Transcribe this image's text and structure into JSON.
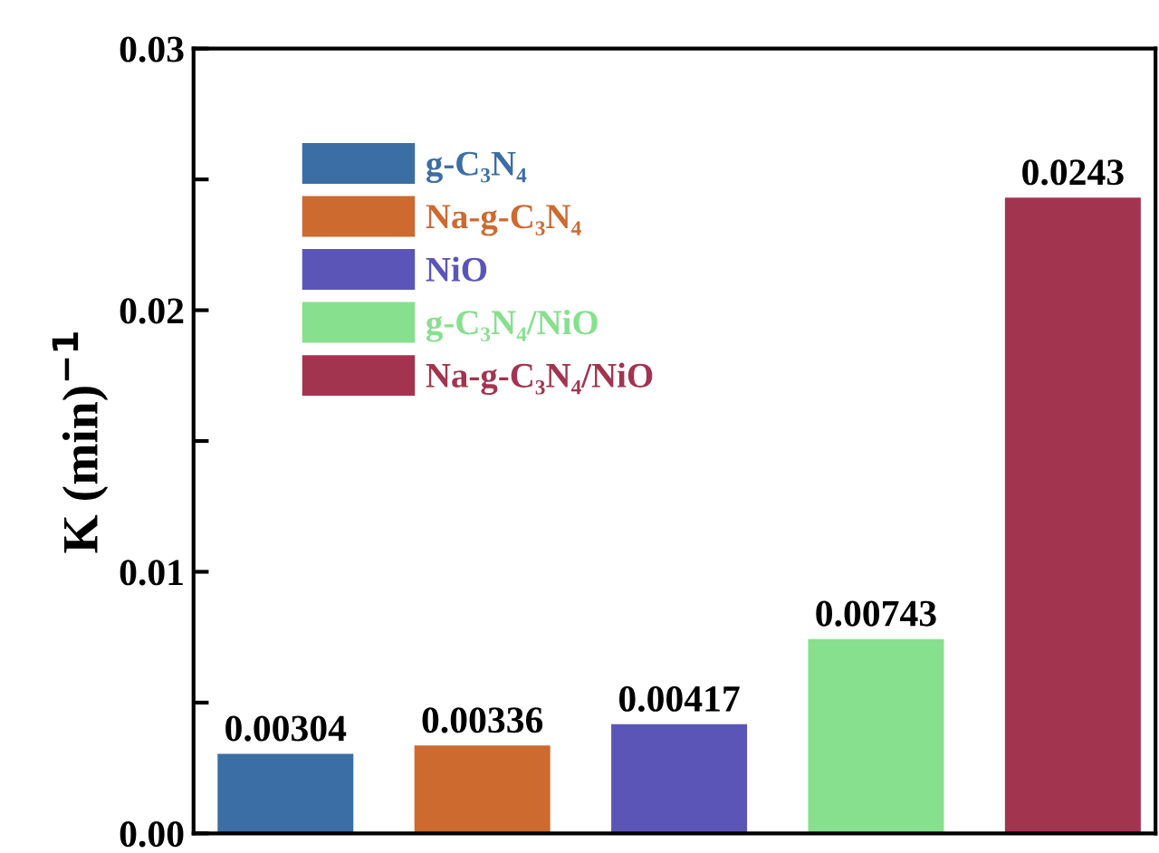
{
  "chart_data": {
    "type": "bar",
    "ylabel": "K (min)$^{−1}$",
    "categories": [
      null,
      null,
      null,
      null,
      null
    ],
    "series": [
      {
        "name": "g-C₃N₄",
        "color": "#3b6ea5",
        "values": [
          0.00304,
          null,
          null,
          null,
          null
        ]
      },
      {
        "name": "Na-g-C₃N₄",
        "color": "#cc6a30",
        "values": [
          null,
          0.00336,
          null,
          null,
          null
        ]
      },
      {
        "name": "NiO",
        "color": "#5b55b8",
        "values": [
          null,
          null,
          0.00417,
          null,
          null
        ]
      },
      {
        "name": "g-C₃N₄/NiO",
        "color": "#86e08e",
        "values": [
          null,
          null,
          null,
          0.00743,
          null
        ]
      },
      {
        "name": "Na-g-C₃N₄/NiO",
        "color": "#a3344f",
        "values": [
          null,
          null,
          null,
          null,
          0.0243
        ]
      }
    ],
    "ylim": [
      0,
      0.03
    ],
    "yticks": [
      {
        "value": 0,
        "label": "0.00"
      },
      {
        "value": 0.005,
        "label": null
      },
      0.01,
      {
        "value": 0.015,
        "label": null
      },
      0.02,
      {
        "value": 0.025,
        "label": null
      },
      0.03
    ],
    "data_labels": true,
    "legend": "top left",
    "tick_labels": "y"
  }
}
